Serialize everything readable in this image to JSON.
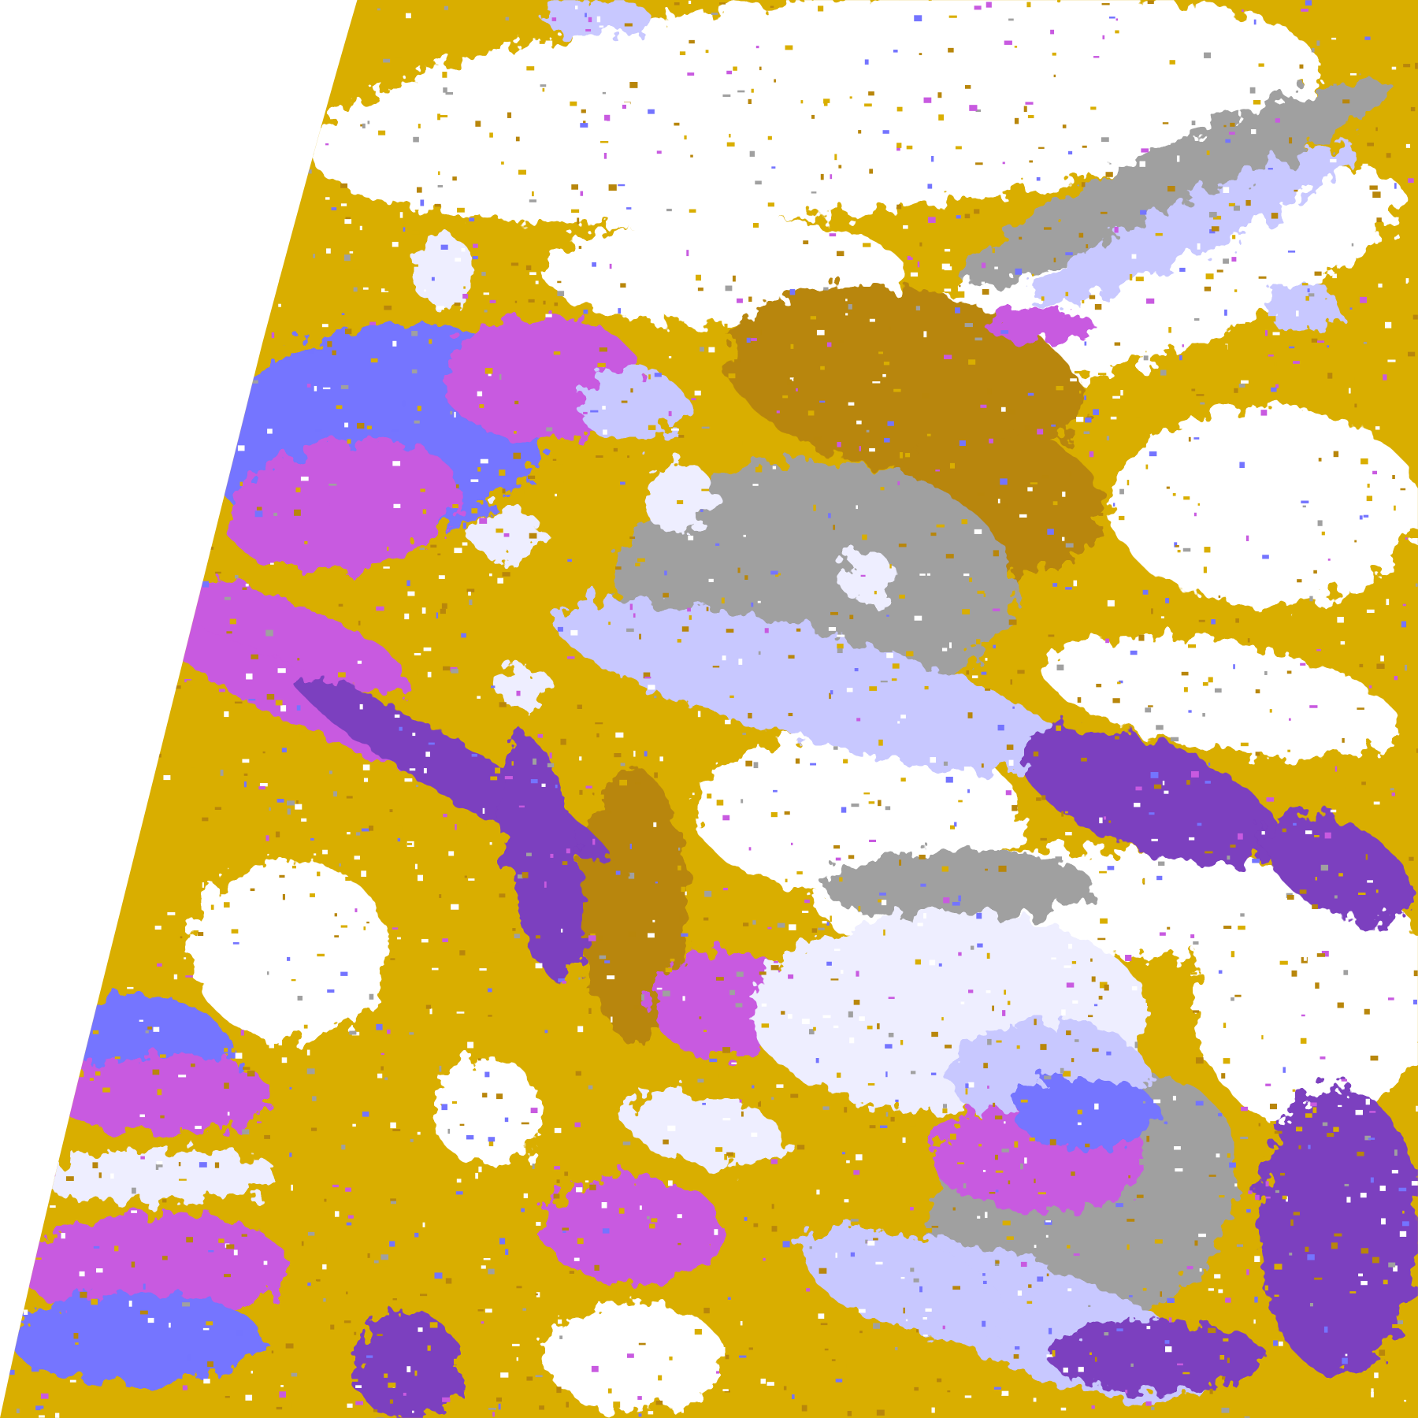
{
  "map": {
    "colors": {
      "background": "#ffffff",
      "gold": "#d9ae00",
      "dark_gold": "#b8860b",
      "purple": "#7b3fbf",
      "magenta": "#c85ae0",
      "blue": "#7474ff",
      "lavender": "#c8c8ff",
      "pale": "#eeeeff",
      "gray": "#a0a0a0",
      "dark_gray": "#8c8c8c"
    }
  }
}
